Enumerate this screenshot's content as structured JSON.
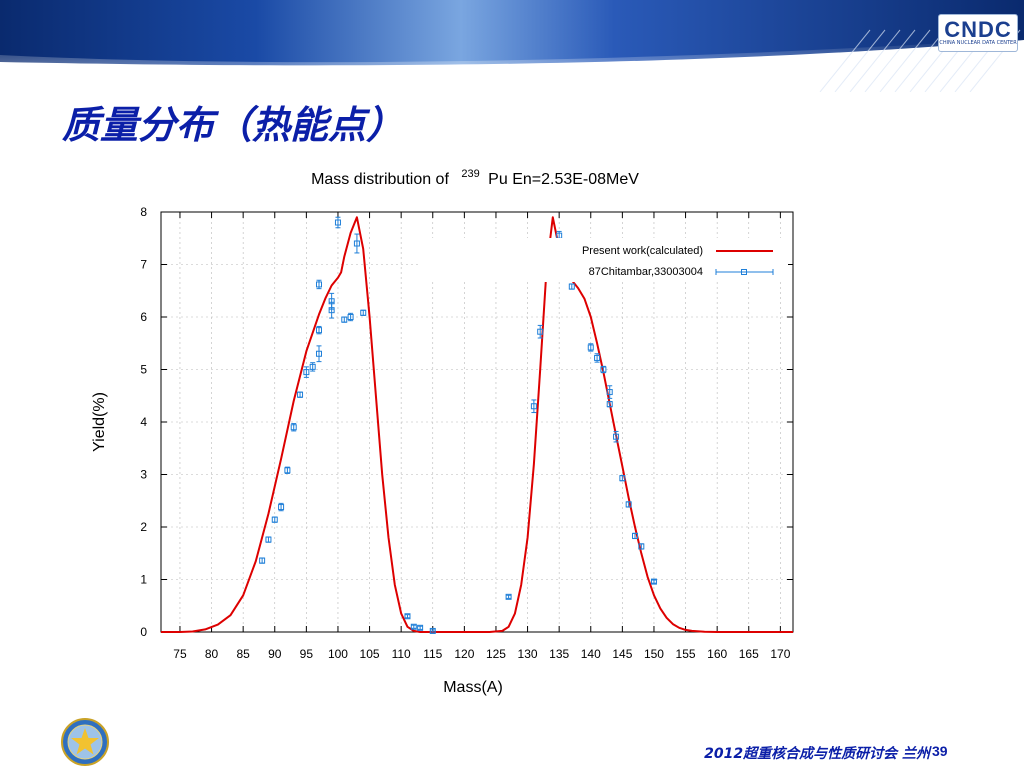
{
  "slide": {
    "title": "质量分布（热能点）",
    "footer": "2012超重核合成与性质研讨会 兰州",
    "page_number": "39",
    "logo": "CNDC",
    "logo_subtitle": "CHINA NUCLEAR DATA CENTER"
  },
  "colors": {
    "banner_dark": "#0a2a6e",
    "banner_light": "#7aa6e0",
    "title": "#0b1fa8",
    "calc_line": "#dd0000",
    "exp_marker": "#1f7fd8"
  },
  "chart_data": {
    "type": "line",
    "title_prefix": "Mass distribution of",
    "title_superscript": "239",
    "title_suffix": "Pu En=2.53E-08MeV",
    "xlabel": "Mass(A)",
    "ylabel": "Yield(%)",
    "xlim": [
      72,
      172
    ],
    "ylim": [
      0,
      8
    ],
    "xticks": [
      75,
      80,
      85,
      90,
      95,
      100,
      105,
      110,
      115,
      120,
      125,
      130,
      135,
      140,
      145,
      150,
      155,
      160,
      165,
      170
    ],
    "yticks": [
      0,
      1,
      2,
      3,
      4,
      5,
      6,
      7,
      8
    ],
    "grid": true,
    "legend_position": "top-right",
    "series": [
      {
        "name": "Present work(calculated)",
        "style": "line",
        "color": "#dd0000",
        "x": [
          72,
          75,
          77,
          79,
          81,
          83,
          85,
          87,
          89,
          91,
          93,
          95,
          97,
          98,
          99,
          100,
          100.5,
          101,
          102,
          103,
          104,
          105,
          106,
          107,
          108,
          109,
          110,
          111,
          112,
          113,
          115,
          120,
          124,
          126,
          127,
          128,
          129,
          130,
          131,
          132,
          133,
          134,
          135,
          136,
          137,
          138,
          139,
          140,
          141,
          142,
          143,
          144,
          145,
          146,
          147,
          148,
          149,
          150,
          151,
          152,
          153,
          154,
          155,
          156,
          158,
          160,
          161,
          163,
          166,
          172
        ],
        "y": [
          0,
          0,
          0.01,
          0.05,
          0.14,
          0.32,
          0.7,
          1.35,
          2.25,
          3.3,
          4.4,
          5.35,
          6.05,
          6.35,
          6.6,
          6.75,
          6.85,
          7.15,
          7.6,
          7.9,
          7.3,
          6.0,
          4.5,
          3.0,
          1.8,
          0.9,
          0.35,
          0.1,
          0.02,
          0,
          0,
          0,
          0,
          0.02,
          0.1,
          0.35,
          0.9,
          1.8,
          3.2,
          5.0,
          6.9,
          7.9,
          7.3,
          6.9,
          6.7,
          6.55,
          6.35,
          6.0,
          5.5,
          4.95,
          4.35,
          3.75,
          3.15,
          2.55,
          2.0,
          1.5,
          1.05,
          0.7,
          0.45,
          0.27,
          0.15,
          0.08,
          0.04,
          0.02,
          0.005,
          0,
          0,
          0,
          0,
          0
        ]
      },
      {
        "name": "87Chitambar,33003004",
        "style": "errorbar",
        "color": "#1f7fd8",
        "x": [
          88,
          89,
          90,
          91,
          92,
          93,
          94,
          95,
          96,
          97,
          97,
          97,
          99,
          99,
          100,
          101,
          102,
          103,
          104,
          111,
          112,
          113,
          115,
          127,
          131,
          132,
          133,
          133,
          135,
          137,
          140,
          141,
          142,
          143,
          143,
          144,
          145,
          146,
          147,
          148,
          150
        ],
        "y": [
          1.36,
          1.76,
          2.14,
          2.38,
          3.08,
          3.9,
          4.52,
          4.95,
          5.05,
          5.3,
          5.75,
          6.62,
          6.3,
          6.13,
          7.8,
          5.95,
          6.0,
          7.4,
          6.08,
          0.3,
          0.1,
          0.08,
          0.02,
          0.67,
          4.3,
          5.72,
          7.05,
          7.0,
          7.55,
          6.58,
          5.42,
          5.22,
          5.0,
          4.57,
          4.34,
          3.72,
          2.93,
          2.43,
          1.83,
          1.63,
          0.96
        ],
        "err": [
          0.05,
          0.05,
          0.05,
          0.07,
          0.06,
          0.07,
          0.05,
          0.1,
          0.08,
          0.15,
          0.07,
          0.08,
          0.15,
          0.15,
          0.1,
          0.05,
          0.07,
          0.18,
          0.05,
          0.03,
          0.03,
          0.03,
          0.02,
          0.03,
          0.12,
          0.12,
          0.12,
          0.08,
          0.08,
          0.05,
          0.07,
          0.08,
          0.06,
          0.12,
          0.05,
          0.1,
          0.05,
          0.05,
          0.05,
          0.05,
          0.03
        ]
      }
    ]
  }
}
